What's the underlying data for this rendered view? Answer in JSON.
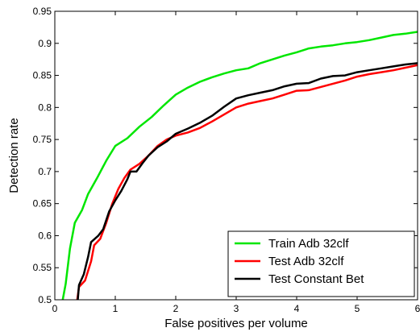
{
  "chart_data": {
    "type": "line",
    "title": "",
    "xlabel": "False positives per volume",
    "ylabel": "Detection rate",
    "xlim": [
      0,
      6
    ],
    "ylim": [
      0.5,
      0.95
    ],
    "xticks": [
      0,
      1,
      2,
      3,
      4,
      5,
      6
    ],
    "yticks": [
      0.5,
      0.55,
      0.6,
      0.65,
      0.7,
      0.75,
      0.8,
      0.85,
      0.9,
      0.95
    ],
    "xtick_labels": [
      "0",
      "1",
      "2",
      "3",
      "4",
      "5",
      "6"
    ],
    "ytick_labels": [
      "0.5",
      "0.55",
      "0.6",
      "0.65",
      "0.7",
      "0.75",
      "0.8",
      "0.85",
      "0.9",
      "0.95"
    ],
    "grid": false,
    "legend_position": "bottom-right",
    "series": [
      {
        "name": "Train Adb 32clf",
        "color": "#00e600",
        "points": [
          [
            0.13,
            0.5
          ],
          [
            0.18,
            0.525
          ],
          [
            0.25,
            0.58
          ],
          [
            0.33,
            0.62
          ],
          [
            0.45,
            0.64
          ],
          [
            0.55,
            0.665
          ],
          [
            0.7,
            0.69
          ],
          [
            0.85,
            0.717
          ],
          [
            1.0,
            0.74
          ],
          [
            1.2,
            0.752
          ],
          [
            1.4,
            0.77
          ],
          [
            1.6,
            0.785
          ],
          [
            1.8,
            0.803
          ],
          [
            2.0,
            0.82
          ],
          [
            2.2,
            0.831
          ],
          [
            2.4,
            0.84
          ],
          [
            2.6,
            0.847
          ],
          [
            2.8,
            0.853
          ],
          [
            3.0,
            0.858
          ],
          [
            3.2,
            0.861
          ],
          [
            3.4,
            0.869
          ],
          [
            3.6,
            0.875
          ],
          [
            3.8,
            0.881
          ],
          [
            4.0,
            0.886
          ],
          [
            4.2,
            0.892
          ],
          [
            4.4,
            0.895
          ],
          [
            4.6,
            0.897
          ],
          [
            4.8,
            0.9
          ],
          [
            5.0,
            0.902
          ],
          [
            5.2,
            0.905
          ],
          [
            5.4,
            0.909
          ],
          [
            5.6,
            0.913
          ],
          [
            5.8,
            0.915
          ],
          [
            6.0,
            0.918
          ]
        ]
      },
      {
        "name": "Test Adb 32clf",
        "color": "#ff0000",
        "points": [
          [
            0.37,
            0.5
          ],
          [
            0.4,
            0.52
          ],
          [
            0.5,
            0.53
          ],
          [
            0.6,
            0.56
          ],
          [
            0.65,
            0.585
          ],
          [
            0.75,
            0.595
          ],
          [
            0.85,
            0.62
          ],
          [
            0.95,
            0.65
          ],
          [
            1.05,
            0.673
          ],
          [
            1.15,
            0.69
          ],
          [
            1.25,
            0.703
          ],
          [
            1.4,
            0.712
          ],
          [
            1.55,
            0.725
          ],
          [
            1.7,
            0.74
          ],
          [
            1.85,
            0.75
          ],
          [
            2.0,
            0.756
          ],
          [
            2.2,
            0.761
          ],
          [
            2.4,
            0.768
          ],
          [
            2.6,
            0.778
          ],
          [
            2.8,
            0.789
          ],
          [
            3.0,
            0.8
          ],
          [
            3.2,
            0.806
          ],
          [
            3.4,
            0.81
          ],
          [
            3.6,
            0.814
          ],
          [
            3.8,
            0.82
          ],
          [
            4.0,
            0.826
          ],
          [
            4.2,
            0.827
          ],
          [
            4.4,
            0.832
          ],
          [
            4.6,
            0.837
          ],
          [
            4.8,
            0.842
          ],
          [
            5.0,
            0.848
          ],
          [
            5.2,
            0.852
          ],
          [
            5.4,
            0.855
          ],
          [
            5.6,
            0.858
          ],
          [
            5.8,
            0.862
          ],
          [
            6.0,
            0.866
          ]
        ]
      },
      {
        "name": "Test Constant Bet",
        "color": "#000000",
        "points": [
          [
            0.38,
            0.5
          ],
          [
            0.4,
            0.523
          ],
          [
            0.48,
            0.54
          ],
          [
            0.55,
            0.567
          ],
          [
            0.6,
            0.59
          ],
          [
            0.72,
            0.6
          ],
          [
            0.8,
            0.61
          ],
          [
            0.9,
            0.638
          ],
          [
            1.0,
            0.655
          ],
          [
            1.1,
            0.67
          ],
          [
            1.2,
            0.688
          ],
          [
            1.25,
            0.7
          ],
          [
            1.35,
            0.7
          ],
          [
            1.45,
            0.713
          ],
          [
            1.55,
            0.725
          ],
          [
            1.7,
            0.738
          ],
          [
            1.85,
            0.747
          ],
          [
            2.0,
            0.759
          ],
          [
            2.2,
            0.767
          ],
          [
            2.4,
            0.776
          ],
          [
            2.6,
            0.787
          ],
          [
            2.8,
            0.801
          ],
          [
            3.0,
            0.814
          ],
          [
            3.2,
            0.819
          ],
          [
            3.4,
            0.823
          ],
          [
            3.6,
            0.827
          ],
          [
            3.8,
            0.833
          ],
          [
            4.0,
            0.837
          ],
          [
            4.2,
            0.838
          ],
          [
            4.4,
            0.845
          ],
          [
            4.6,
            0.849
          ],
          [
            4.8,
            0.85
          ],
          [
            5.0,
            0.855
          ],
          [
            5.2,
            0.858
          ],
          [
            5.4,
            0.861
          ],
          [
            5.6,
            0.864
          ],
          [
            5.8,
            0.867
          ],
          [
            6.0,
            0.869
          ]
        ]
      }
    ]
  }
}
